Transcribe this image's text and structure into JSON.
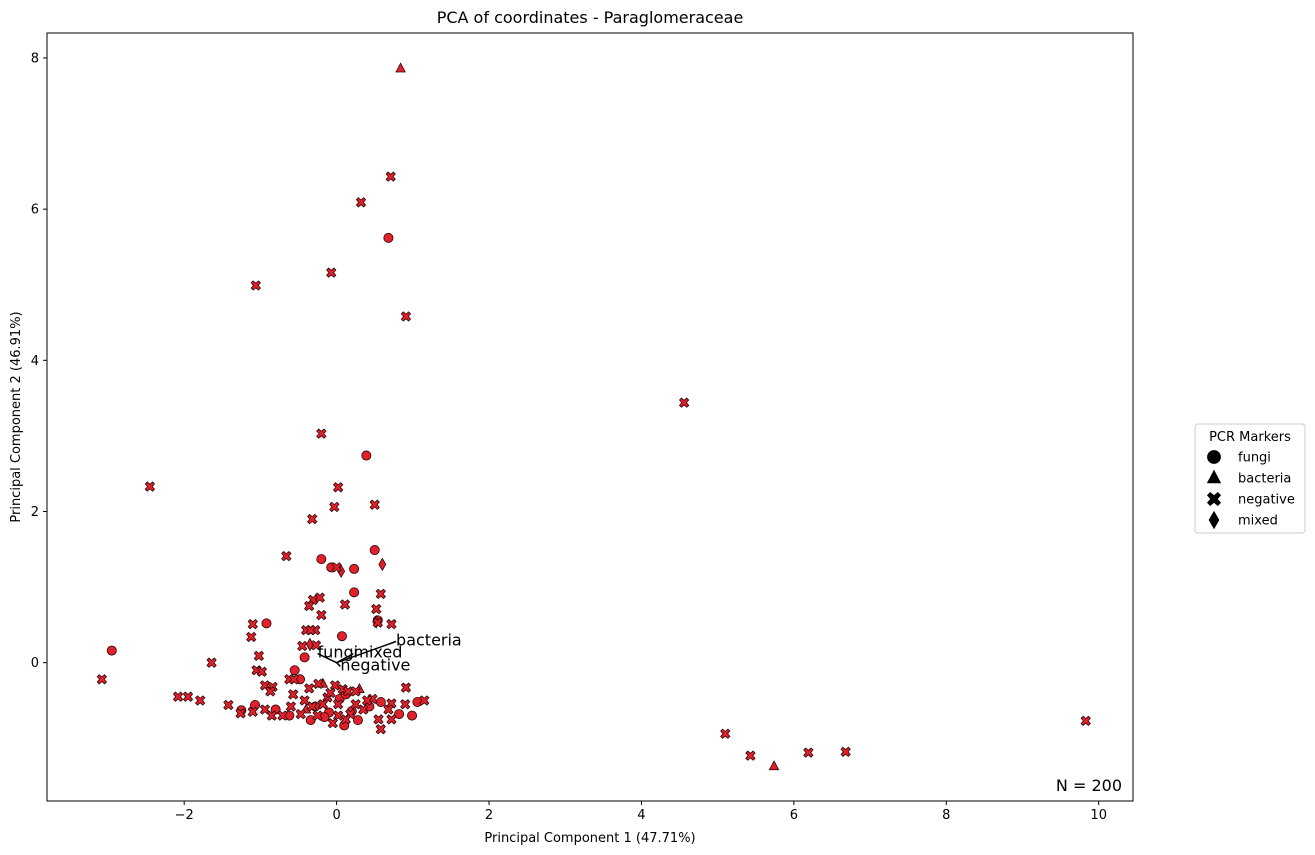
{
  "chart_data": {
    "type": "scatter",
    "title": "PCA of coordinates - Paraglomeraceae",
    "xlabel": "Principal Component 1 (47.71%)",
    "ylabel": "Principal Component 2 (46.91%)",
    "xlim": [
      -3.8,
      10.45
    ],
    "ylim": [
      -1.83,
      8.33
    ],
    "xticks": [
      -2,
      0,
      2,
      4,
      6,
      8,
      10
    ],
    "yticks": [
      0,
      2,
      4,
      6,
      8
    ],
    "xtick_labels": [
      "−2",
      "0",
      "2",
      "4",
      "6",
      "8",
      "10"
    ],
    "ytick_labels": [
      "0",
      "2",
      "4",
      "6",
      "8"
    ],
    "grid": false,
    "annotation": "N = 200",
    "colors": {
      "marker_fill": "#e0202a",
      "marker_edge": "#2a0508",
      "arrow": "#000000"
    },
    "legend": {
      "title": "PCR Markers",
      "placement": "outside-right",
      "entries": [
        {
          "label": "fungi",
          "marker": "circle"
        },
        {
          "label": "bacteria",
          "marker": "triangle"
        },
        {
          "label": "negative",
          "marker": "x"
        },
        {
          "label": "mixed",
          "marker": "diamond"
        }
      ]
    },
    "loadings": [
      {
        "label": "bacteria",
        "x": 0.78,
        "y": 0.28
      },
      {
        "label": "fungi",
        "x": -0.25,
        "y": 0.12
      },
      {
        "label": "mixed",
        "x": 0.22,
        "y": 0.12
      },
      {
        "label": "negative",
        "x": 0.05,
        "y": -0.05
      }
    ],
    "series": [
      {
        "marker": "circle",
        "points": [
          [
            -2.95,
            0.16
          ],
          [
            0.68,
            5.62
          ],
          [
            0.39,
            2.74
          ],
          [
            0.5,
            1.49
          ],
          [
            -0.2,
            1.37
          ],
          [
            0.23,
            1.24
          ],
          [
            -0.07,
            1.26
          ],
          [
            0.23,
            0.93
          ],
          [
            -0.92,
            0.52
          ],
          [
            0.07,
            0.35
          ],
          [
            0.54,
            0.56
          ],
          [
            -0.55,
            -0.1
          ],
          [
            -0.42,
            0.07
          ],
          [
            -1.07,
            -0.56
          ],
          [
            -1.25,
            -0.63
          ],
          [
            -0.62,
            -0.7
          ],
          [
            -0.34,
            -0.76
          ],
          [
            0.1,
            -0.83
          ],
          [
            0.28,
            -0.76
          ],
          [
            0.82,
            -0.68
          ],
          [
            0.99,
            -0.7
          ],
          [
            1.06,
            -0.52
          ],
          [
            -0.1,
            -0.66
          ],
          [
            0.04,
            -0.48
          ],
          [
            -0.48,
            -0.22
          ],
          [
            0.12,
            -0.42
          ],
          [
            -0.28,
            -0.58
          ],
          [
            0.43,
            -0.58
          ],
          [
            -0.8,
            -0.62
          ],
          [
            0.58,
            -0.52
          ],
          [
            -0.16,
            -0.72
          ],
          [
            0.2,
            -0.64
          ]
        ]
      },
      {
        "marker": "triangle",
        "points": [
          [
            0.84,
            7.86
          ],
          [
            5.74,
            -1.37
          ],
          [
            -0.4,
            -0.62
          ],
          [
            0.3,
            -0.35
          ],
          [
            -0.18,
            -0.28
          ]
        ]
      },
      {
        "marker": "diamond",
        "points": [
          [
            0.6,
            1.3
          ],
          [
            0.06,
            1.21
          ],
          [
            0.52,
            0.54
          ],
          [
            -0.35,
            0.24
          ]
        ]
      },
      {
        "marker": "x",
        "points": [
          [
            0.71,
            6.43
          ],
          [
            0.32,
            6.09
          ],
          [
            -0.07,
            5.16
          ],
          [
            -1.06,
            4.99
          ],
          [
            0.91,
            4.58
          ],
          [
            4.56,
            3.44
          ],
          [
            -2.45,
            2.33
          ],
          [
            -0.2,
            3.03
          ],
          [
            0.02,
            2.32
          ],
          [
            0.5,
            2.09
          ],
          [
            -0.03,
            2.06
          ],
          [
            -0.32,
            1.9
          ],
          [
            -0.66,
            1.41
          ],
          [
            0.0,
            1.26
          ],
          [
            0.58,
            0.91
          ],
          [
            -0.22,
            0.86
          ],
          [
            -0.31,
            0.83
          ],
          [
            -0.36,
            0.75
          ],
          [
            0.11,
            0.77
          ],
          [
            0.52,
            0.71
          ],
          [
            -0.2,
            0.63
          ],
          [
            -1.1,
            0.51
          ],
          [
            0.72,
            0.51
          ],
          [
            -0.28,
            0.43
          ],
          [
            -0.4,
            0.43
          ],
          [
            -0.34,
            0.43
          ],
          [
            -1.12,
            0.34
          ],
          [
            0.54,
            0.53
          ],
          [
            -0.45,
            0.22
          ],
          [
            -0.27,
            0.23
          ],
          [
            -1.02,
            0.09
          ],
          [
            -1.64,
            0.0
          ],
          [
            -3.08,
            -0.22
          ],
          [
            -1.05,
            -0.1
          ],
          [
            -0.98,
            -0.12
          ],
          [
            -0.62,
            -0.22
          ],
          [
            -0.56,
            -0.22
          ],
          [
            -0.94,
            -0.3
          ],
          [
            -0.84,
            -0.32
          ],
          [
            -0.24,
            -0.28
          ],
          [
            -0.02,
            -0.3
          ],
          [
            0.08,
            -0.35
          ],
          [
            0.15,
            -0.38
          ],
          [
            0.25,
            -0.38
          ],
          [
            -0.36,
            -0.34
          ],
          [
            0.91,
            -0.33
          ],
          [
            -2.08,
            -0.45
          ],
          [
            -1.95,
            -0.45
          ],
          [
            -1.79,
            -0.5
          ],
          [
            -1.42,
            -0.56
          ],
          [
            -0.87,
            -0.38
          ],
          [
            -0.57,
            -0.42
          ],
          [
            -0.12,
            -0.46
          ],
          [
            0.47,
            -0.48
          ],
          [
            0.72,
            -0.54
          ],
          [
            1.15,
            -0.5
          ],
          [
            -1.26,
            -0.67
          ],
          [
            -1.1,
            -0.65
          ],
          [
            -0.94,
            -0.62
          ],
          [
            -0.71,
            -0.7
          ],
          [
            -0.47,
            -0.68
          ],
          [
            -0.25,
            -0.7
          ],
          [
            0.02,
            -0.7
          ],
          [
            0.18,
            -0.68
          ],
          [
            0.55,
            -0.75
          ],
          [
            0.72,
            -0.75
          ],
          [
            0.58,
            -0.88
          ],
          [
            -0.05,
            -0.8
          ],
          [
            0.12,
            -0.75
          ],
          [
            5.1,
            -0.94
          ],
          [
            5.43,
            -1.23
          ],
          [
            6.19,
            -1.19
          ],
          [
            6.68,
            -1.18
          ],
          [
            9.83,
            -0.77
          ],
          [
            -0.32,
            -0.58
          ],
          [
            0.35,
            -0.62
          ],
          [
            -0.6,
            -0.58
          ],
          [
            0.02,
            -0.55
          ],
          [
            -0.18,
            -0.55
          ],
          [
            -0.85,
            -0.7
          ],
          [
            0.4,
            -0.5
          ],
          [
            0.25,
            -0.55
          ],
          [
            -0.08,
            -0.4
          ],
          [
            0.68,
            -0.62
          ],
          [
            -0.42,
            -0.5
          ],
          [
            0.9,
            -0.55
          ]
        ]
      }
    ]
  }
}
